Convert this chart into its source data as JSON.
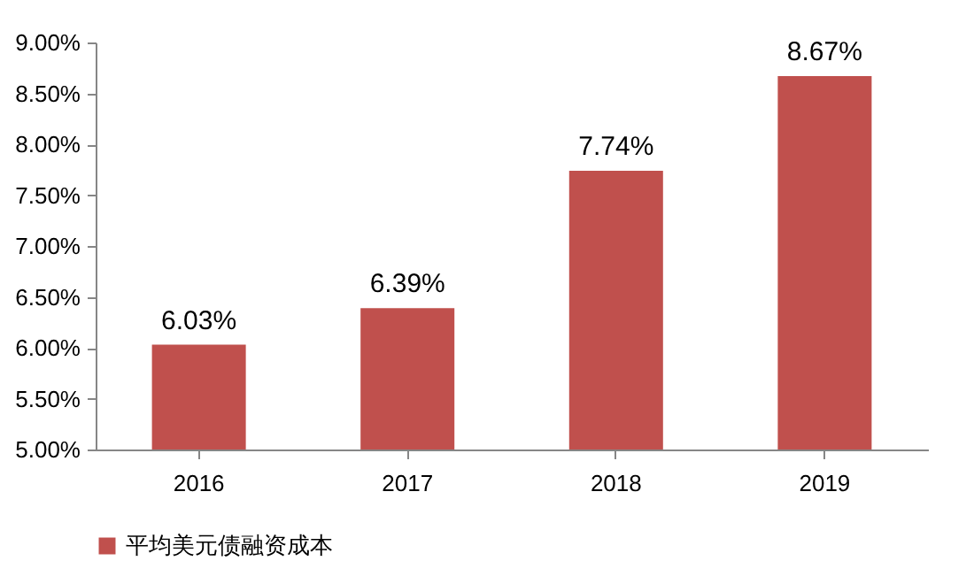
{
  "chart_data": {
    "type": "bar",
    "categories": [
      "2016",
      "2017",
      "2018",
      "2019"
    ],
    "series": [
      {
        "name": "平均美元债融资成本",
        "color": "#c0504d",
        "values": [
          6.03,
          6.39,
          7.74,
          8.67
        ],
        "value_labels": [
          "6.03%",
          "6.39%",
          "7.74%",
          "8.67%"
        ]
      }
    ],
    "ylim": [
      5,
      9
    ],
    "yticks": [
      {
        "value": 5,
        "label": "5.00%"
      },
      {
        "value": 5.5,
        "label": "5.50%"
      },
      {
        "value": 6,
        "label": "6.00%"
      },
      {
        "value": 6.5,
        "label": "6.50%"
      },
      {
        "value": 7,
        "label": "7.00%"
      },
      {
        "value": 7.5,
        "label": "7.50%"
      },
      {
        "value": 8,
        "label": "8.00%"
      },
      {
        "value": 8.5,
        "label": "8.50%"
      },
      {
        "value": 9,
        "label": "9.00%"
      }
    ],
    "legend": "bottom"
  }
}
